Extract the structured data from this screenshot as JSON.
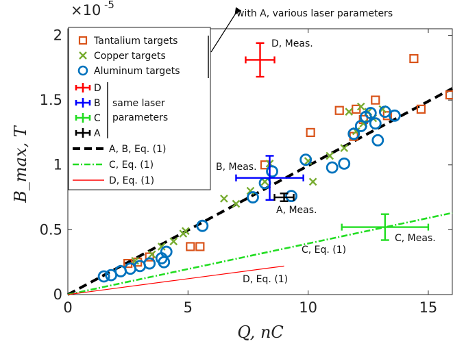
{
  "chart_data": {
    "type": "scatter",
    "xlabel": "Q, nC",
    "ylabel": "B_max, T",
    "y_exponent": "×10",
    "y_exponent_power": "-5",
    "xlim": [
      0,
      16
    ],
    "ylim": [
      0,
      2.05
    ],
    "x_ticks": [
      "0",
      "5",
      "10",
      "15"
    ],
    "y_ticks": [
      "0",
      "0.5",
      "1",
      "1.5",
      "2"
    ],
    "grid": false,
    "legend_position": "top-left",
    "series": [
      {
        "name": "Tantalium targets",
        "marker": "square",
        "color": "#d95319",
        "x": [
          2.5,
          2.9,
          3.4,
          5.1,
          5.5,
          8.2,
          10.1,
          11.3,
          11.9,
          12.0,
          12.3,
          12.8,
          13.3,
          14.7,
          14.4,
          15.9
        ],
        "y": [
          0.24,
          0.25,
          0.29,
          0.37,
          0.37,
          1.0,
          1.25,
          1.42,
          1.22,
          1.43,
          1.35,
          1.5,
          1.38,
          1.43,
          1.82,
          1.54
        ]
      },
      {
        "name": "Copper targets",
        "marker": "x",
        "color": "#77ac30",
        "x": [
          2.8,
          3.5,
          3.9,
          4.4,
          4.8,
          4.9,
          6.5,
          7.0,
          7.6,
          8.2,
          8.4,
          10.0,
          10.2,
          10.9,
          11.5,
          11.7,
          12.0,
          12.2,
          12.3,
          12.5,
          12.7,
          13.1
        ],
        "y": [
          0.26,
          0.31,
          0.37,
          0.41,
          0.47,
          0.49,
          0.74,
          0.7,
          0.8,
          0.87,
          1.01,
          1.03,
          0.87,
          1.07,
          1.13,
          1.41,
          1.26,
          1.45,
          1.32,
          1.41,
          1.36,
          1.43
        ]
      },
      {
        "name": "Aluminum targets",
        "marker": "circle",
        "color": "#0072bd",
        "x": [
          1.5,
          1.8,
          2.2,
          2.6,
          3.0,
          3.4,
          3.9,
          4.0,
          4.1,
          5.6,
          7.7,
          8.2,
          8.5,
          9.3,
          9.9,
          11.0,
          11.5,
          11.9,
          12.2,
          12.4,
          12.6,
          12.8,
          12.9,
          13.2,
          13.6
        ],
        "y": [
          0.14,
          0.15,
          0.18,
          0.2,
          0.22,
          0.24,
          0.28,
          0.25,
          0.33,
          0.53,
          0.75,
          0.86,
          0.95,
          0.76,
          1.04,
          0.98,
          1.01,
          1.24,
          1.3,
          1.37,
          1.4,
          1.32,
          1.19,
          1.41,
          1.38
        ]
      }
    ],
    "measurements": [
      {
        "name": "D",
        "color": "#ff0000",
        "x": 8.0,
        "y": 1.81,
        "xerr": 0.6,
        "yerr": 0.13,
        "label": "D, Meas."
      },
      {
        "name": "B",
        "color": "#0000ff",
        "x": 8.4,
        "y": 0.9,
        "xerr": 1.4,
        "yerr": 0.17,
        "label": "B, Meas."
      },
      {
        "name": "C",
        "color": "#22dd22",
        "x": 13.2,
        "y": 0.52,
        "xerr": 1.8,
        "yerr": 0.1,
        "label": "C, Meas."
      },
      {
        "name": "A",
        "color": "#000000",
        "x": 9.0,
        "y": 0.75,
        "xerr": 0.4,
        "yerr": 0.03,
        "label": "A, Meas."
      }
    ],
    "lines": [
      {
        "name": "A, B, Eq. (1)",
        "color": "#000000",
        "dash": "dashed",
        "x": [
          0,
          16
        ],
        "y": [
          0,
          1.59
        ]
      },
      {
        "name": "C, Eq. (1)",
        "color": "#22dd22",
        "dash": "dashdot",
        "x": [
          0,
          16
        ],
        "y": [
          0,
          0.63
        ]
      },
      {
        "name": "D, Eq. (1)",
        "color": "#ff0000",
        "dash": "solid",
        "x": [
          0,
          9.0
        ],
        "y": [
          0,
          0.22
        ]
      }
    ],
    "annotations": {
      "top_arrow": "with A, various laser parameters",
      "group_label": [
        "same laser",
        "parameters"
      ],
      "C_eq": "C, Eq. (1)",
      "D_eq": "D, Eq. (1)"
    }
  }
}
